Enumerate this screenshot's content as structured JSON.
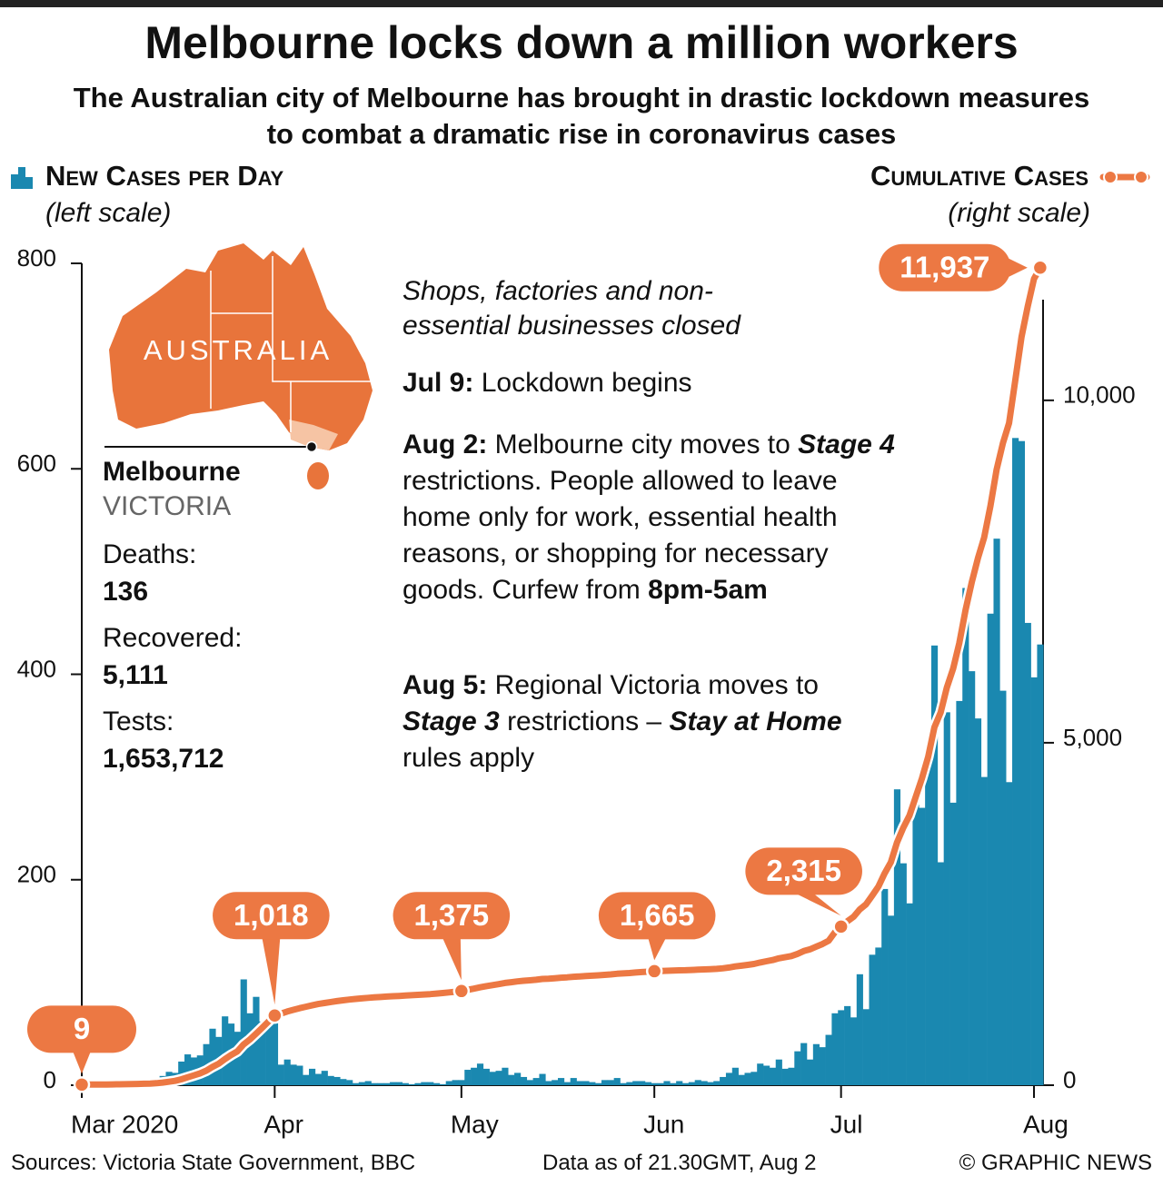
{
  "chart_data": {
    "type": "bar-line",
    "title": "Melbourne locks down a million workers",
    "subtitle": "The Australian city of Melbourne has brought in drastic lockdown measures to combat a dramatic rise in coronavirus cases",
    "y_label": "(left scale)",
    "y2_label": "(right scale)",
    "categories": [
      "Mar 2020",
      null,
      null,
      null,
      null,
      null,
      null,
      null,
      null,
      null,
      null,
      null,
      null,
      null,
      null,
      null,
      null,
      null,
      null,
      null,
      null,
      null,
      null,
      null,
      null,
      null,
      null,
      null,
      null,
      null,
      null,
      "Apr",
      null,
      null,
      null,
      null,
      null,
      null,
      null,
      null,
      null,
      null,
      null,
      null,
      null,
      null,
      null,
      null,
      null,
      null,
      null,
      null,
      null,
      null,
      null,
      null,
      null,
      null,
      null,
      null,
      null,
      "May",
      null,
      null,
      null,
      null,
      null,
      null,
      null,
      null,
      null,
      null,
      null,
      null,
      null,
      null,
      null,
      null,
      null,
      null,
      null,
      null,
      null,
      null,
      null,
      null,
      null,
      null,
      null,
      null,
      null,
      null,
      "Jun",
      null,
      null,
      null,
      null,
      null,
      null,
      null,
      null,
      null,
      null,
      null,
      null,
      null,
      null,
      null,
      null,
      null,
      null,
      null,
      null,
      null,
      null,
      null,
      null,
      null,
      null,
      null,
      null,
      null,
      "Jul",
      null,
      null,
      null,
      null,
      null,
      null,
      null,
      null,
      null,
      null,
      null,
      null,
      null,
      null,
      null,
      null,
      null,
      null,
      null,
      null,
      null,
      null,
      null,
      null,
      null,
      null,
      null,
      null,
      null,
      null,
      "Aug",
      null
    ],
    "series": [
      {
        "name": "New Cases per Day",
        "color": "#1a88b0",
        "type": "bar",
        "values": [
          0,
          0,
          0,
          1,
          0,
          1,
          1,
          1,
          2,
          2,
          3,
          2,
          6,
          9,
          13,
          12,
          23,
          30,
          27,
          29,
          40,
          55,
          47,
          67,
          60,
          52,
          103,
          70,
          86,
          62,
          65,
          68,
          20,
          25,
          20,
          19,
          10,
          16,
          11,
          14,
          9,
          8,
          6,
          5,
          2,
          3,
          4,
          2,
          2,
          2,
          3,
          3,
          2,
          1,
          2,
          3,
          3,
          2,
          1,
          4,
          5,
          5,
          15,
          17,
          21,
          16,
          13,
          14,
          17,
          10,
          12,
          8,
          5,
          7,
          11,
          4,
          5,
          7,
          3,
          7,
          4,
          4,
          3,
          2,
          5,
          5,
          7,
          2,
          3,
          4,
          4,
          3,
          2,
          2,
          4,
          2,
          4,
          2,
          3,
          5,
          4,
          3,
          4,
          8,
          12,
          17,
          10,
          12,
          13,
          21,
          19,
          17,
          25,
          16,
          17,
          33,
          41,
          25,
          40,
          37,
          49,
          70,
          73,
          77,
          66,
          108,
          74,
          127,
          134,
          191,
          165,
          288,
          216,
          177,
          273,
          270,
          317,
          428,
          217,
          363,
          275,
          374,
          484,
          403,
          357,
          300,
          459,
          532,
          384,
          295,
          630,
          627,
          450,
          397,
          429
        ]
      },
      {
        "name": "Cumulative Cases",
        "color": "#ec7843",
        "type": "line",
        "axis": "y2",
        "values": [
          9,
          10,
          10,
          11,
          11,
          12,
          13,
          14,
          16,
          18,
          21,
          23,
          29,
          38,
          51,
          63,
          86,
          116,
          143,
          172,
          212,
          267,
          314,
          381,
          441,
          493,
          596,
          666,
          752,
          840,
          930,
          1018,
          1045,
          1075,
          1100,
          1125,
          1145,
          1165,
          1185,
          1200,
          1215,
          1228,
          1240,
          1250,
          1260,
          1268,
          1276,
          1282,
          1288,
          1294,
          1299,
          1304,
          1309,
          1314,
          1319,
          1324,
          1330,
          1338,
          1346,
          1355,
          1365,
          1375,
          1392,
          1410,
          1430,
          1447,
          1461,
          1476,
          1493,
          1504,
          1516,
          1525,
          1531,
          1539,
          1551,
          1556,
          1562,
          1570,
          1575,
          1583,
          1588,
          1594,
          1599,
          1604,
          1611,
          1618,
          1627,
          1632,
          1638,
          1645,
          1652,
          1658,
          1665,
          1667,
          1671,
          1673,
          1677,
          1679,
          1682,
          1687,
          1691,
          1694,
          1698,
          1706,
          1718,
          1735,
          1745,
          1757,
          1770,
          1791,
          1810,
          1827,
          1852,
          1868,
          1885,
          1918,
          1959,
          1984,
          2024,
          2061,
          2110,
          2231,
          2315,
          2392,
          2458,
          2566,
          2640,
          2767,
          2901,
          3092,
          3257,
          3545,
          3761,
          3938,
          4211,
          4481,
          4798,
          5226,
          5443,
          5806,
          6081,
          6455,
          6939,
          7342,
          7699,
          7999,
          8458,
          8990,
          9374,
          9669,
          10299,
          10926,
          11376,
          11773,
          11937
        ],
        "value_labels": [
          "9",
          null,
          null,
          null,
          null,
          null,
          null,
          null,
          null,
          null,
          null,
          null,
          null,
          null,
          null,
          null,
          null,
          null,
          null,
          null,
          null,
          null,
          null,
          null,
          null,
          null,
          null,
          null,
          null,
          null,
          null,
          "1,018",
          null,
          null,
          null,
          null,
          null,
          null,
          null,
          null,
          null,
          null,
          null,
          null,
          null,
          null,
          null,
          null,
          null,
          null,
          null,
          null,
          null,
          null,
          null,
          null,
          null,
          null,
          null,
          null,
          null,
          "1,375",
          null,
          null,
          null,
          null,
          null,
          null,
          null,
          null,
          null,
          null,
          null,
          null,
          null,
          null,
          null,
          null,
          null,
          null,
          null,
          null,
          null,
          null,
          null,
          null,
          null,
          null,
          null,
          null,
          null,
          null,
          "1,665",
          null,
          null,
          null,
          null,
          null,
          null,
          null,
          null,
          null,
          null,
          null,
          null,
          null,
          null,
          null,
          null,
          null,
          null,
          null,
          null,
          null,
          null,
          null,
          null,
          null,
          null,
          null,
          null,
          null,
          "2,315",
          null,
          null,
          null,
          null,
          null,
          null,
          null,
          null,
          null,
          null,
          null,
          null,
          null,
          null,
          null,
          null,
          null,
          null,
          null,
          null,
          null,
          null,
          null,
          null,
          null,
          null,
          null,
          null,
          null,
          null,
          null,
          "11,937"
        ]
      }
    ],
    "ylim": [
      0,
      800
    ],
    "yticks": [
      0,
      200,
      400,
      600,
      800
    ],
    "y2lim": [
      0,
      12000
    ],
    "y2ticks": [
      0,
      {
        "value": 5000,
        "label": "5,000"
      },
      {
        "value": 10000,
        "label": "10,000"
      }
    ],
    "map_label": "AUSTRALIA",
    "location": {
      "city": "Melbourne",
      "state": "VICTORIA"
    },
    "stats": [
      {
        "label": "Deaths:",
        "value": "136"
      },
      {
        "label": "Recovered:",
        "value": "5,111"
      },
      {
        "label": "Tests:",
        "value": "1,653,712"
      }
    ],
    "annotations": [
      [
        "Shops, factories and non-essential businesses closed"
      ],
      [
        "Jul 9:",
        "Lockdown begins"
      ],
      [
        "Aug 2:",
        "Melbourne city moves to",
        "Stage 4",
        "restrictions. People allowed to leave home only for work, essential health reasons, or shopping for necessary goods. Curfew from",
        "8pm-5am"
      ],
      [
        "Aug 5:",
        "Regional Victoria moves to",
        "Stage 3",
        "restrictions –",
        "Stay at Home",
        "rules apply"
      ]
    ],
    "source": "Sources: Victoria State Government, BBC",
    "data_note": "Data as of 21.30GMT, Aug 2",
    "credit": "© GRAPHIC NEWS"
  }
}
